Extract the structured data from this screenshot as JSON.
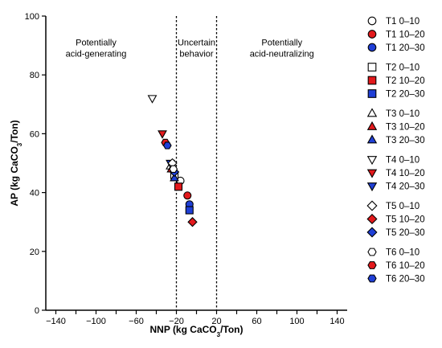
{
  "chart_data": {
    "type": "scatter",
    "xlabel": "NNP (kg CaCO₃/Ton)",
    "ylabel": "AP (kg CaCO₃/Ton)",
    "xlim": [
      -150,
      150
    ],
    "ylim": [
      0,
      100
    ],
    "xticks": [
      -140,
      -120,
      -100,
      -80,
      -60,
      -40,
      -20,
      0,
      20,
      40,
      60,
      80,
      100,
      120,
      140
    ],
    "xtick_labels": [
      "−140",
      "",
      "−100",
      "",
      "−60",
      "",
      "−20",
      "",
      "20",
      "",
      "60",
      "",
      "100",
      "",
      "140"
    ],
    "yticks": [
      0,
      20,
      40,
      60,
      80,
      100
    ],
    "ytick_labels": [
      "0",
      "20",
      "40",
      "60",
      "80",
      "100"
    ],
    "grid": false,
    "legend_position": "right",
    "reference_lines": [
      -20,
      20
    ],
    "regions": [
      {
        "lines": [
          "Potentially",
          "acid-generating"
        ],
        "x": -100,
        "y": 90
      },
      {
        "lines": [
          "Uncertain",
          "behavior"
        ],
        "x": 0,
        "y": 90
      },
      {
        "lines": [
          "Potentially",
          "acid-neutralizing"
        ],
        "x": 85,
        "y": 90
      }
    ],
    "series": [
      {
        "name": "T1 0–10",
        "marker": "circle",
        "fill": "#ffffff",
        "points": [
          [
            -16,
            44
          ]
        ]
      },
      {
        "name": "T1 10–20",
        "marker": "circle",
        "fill": "#e3191c",
        "points": [
          [
            -9,
            39
          ]
        ]
      },
      {
        "name": "T1 20–30",
        "marker": "circle",
        "fill": "#1f3fd6",
        "points": [
          [
            -7,
            36
          ]
        ]
      },
      {
        "name": "T2 0–10",
        "marker": "square",
        "fill": "#ffffff",
        "points": [
          [
            -22,
            46
          ]
        ]
      },
      {
        "name": "T2 10–20",
        "marker": "square",
        "fill": "#e3191c",
        "points": [
          [
            -18,
            42
          ]
        ]
      },
      {
        "name": "T2 20–30",
        "marker": "square",
        "fill": "#1f3fd6",
        "points": [
          [
            -7,
            34
          ]
        ]
      },
      {
        "name": "T3 0–10",
        "marker": "triangle-up",
        "fill": "#ffffff",
        "points": [
          [
            -26,
            49
          ]
        ]
      },
      {
        "name": "T3 10–20",
        "marker": "triangle-up",
        "fill": "#e3191c",
        "points": [
          [
            -25,
            48
          ]
        ]
      },
      {
        "name": "T3 20–30",
        "marker": "triangle-up",
        "fill": "#1f3fd6",
        "points": [
          [
            -22,
            45
          ]
        ]
      },
      {
        "name": "T4 0–10",
        "marker": "triangle-down",
        "fill": "#ffffff",
        "points": [
          [
            -44,
            72
          ]
        ]
      },
      {
        "name": "T4 10–20",
        "marker": "triangle-down",
        "fill": "#e3191c",
        "points": [
          [
            -34,
            60
          ]
        ]
      },
      {
        "name": "T4 20–30",
        "marker": "triangle-down",
        "fill": "#1f3fd6",
        "points": [
          [
            -26,
            50
          ]
        ]
      },
      {
        "name": "T5 0–10",
        "marker": "diamond",
        "fill": "#ffffff",
        "points": [
          [
            -24,
            50
          ]
        ]
      },
      {
        "name": "T5 10–20",
        "marker": "diamond",
        "fill": "#e3191c",
        "points": [
          [
            -4,
            30
          ]
        ]
      },
      {
        "name": "T5 20–30",
        "marker": "diamond",
        "fill": "#1f3fd6",
        "points": [
          [
            -22,
            47
          ]
        ]
      },
      {
        "name": "T6 0–10",
        "marker": "hexagon",
        "fill": "#ffffff",
        "points": [
          [
            -23,
            48
          ]
        ]
      },
      {
        "name": "T6 10–20",
        "marker": "hexagon",
        "fill": "#e3191c",
        "points": [
          [
            -31,
            57
          ]
        ]
      },
      {
        "name": "T6 20–30",
        "marker": "hexagon",
        "fill": "#1f3fd6",
        "points": [
          [
            -29,
            56
          ]
        ]
      }
    ]
  }
}
